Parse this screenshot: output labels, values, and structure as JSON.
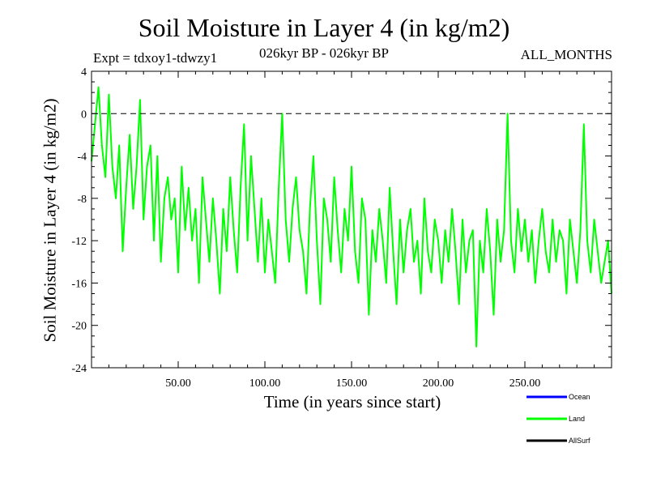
{
  "chart_data": {
    "type": "line",
    "title": "Soil Moisture in Layer 4 (in kg/m2)",
    "subtitle_left": "Expt = tdxoy1-tdwzy1",
    "subtitle_center": "026kyr BP - 026kyr BP",
    "subtitle_right": "ALL_MONTHS",
    "xlabel": "Time (in years since start)",
    "ylabel": "Soil Moisture in Layer 4 (in kg/m2)",
    "xlim": [
      0,
      300
    ],
    "ylim": [
      -24,
      4
    ],
    "xticks": [
      50,
      100,
      150,
      200,
      250
    ],
    "xtick_labels": [
      "50.00",
      "100.00",
      "150.00",
      "200.00",
      "250.00"
    ],
    "yticks": [
      4,
      0,
      -4,
      -8,
      -12,
      -16,
      -20,
      -24
    ],
    "ytick_labels": [
      "4",
      "0",
      "-4",
      "-8",
      "-12",
      "-16",
      "-20",
      "-24"
    ],
    "reference_line": 0,
    "legend": [
      {
        "name": "Ocean",
        "color": "#0000ff"
      },
      {
        "name": "Land",
        "color": "#00ff00"
      },
      {
        "name": "AllSurf",
        "color": "#000000"
      }
    ],
    "series": [
      {
        "name": "Land",
        "color": "#00ff00",
        "x_start": 0,
        "x_step": 2,
        "values": [
          -4.5,
          -1,
          2.5,
          -3,
          -6,
          1.8,
          -5,
          -8,
          -3,
          -13,
          -7,
          -2,
          -9,
          -5,
          1.3,
          -10,
          -5,
          -3,
          -12,
          -4,
          -14,
          -8,
          -6,
          -10,
          -8,
          -15,
          -5,
          -11,
          -7,
          -12,
          -9,
          -16,
          -6,
          -10,
          -14,
          -8,
          -12,
          -17,
          -9,
          -13,
          -6,
          -11,
          -15,
          -7,
          -1,
          -12,
          -4,
          -9,
          -14,
          -8,
          -15,
          -10,
          -13,
          -16,
          -7,
          0,
          -10,
          -14,
          -9,
          -6,
          -11,
          -13,
          -17,
          -9,
          -4,
          -12,
          -18,
          -8,
          -10,
          -14,
          -6,
          -11,
          -15,
          -9,
          -12,
          -5,
          -13,
          -16,
          -8,
          -10,
          -19,
          -11,
          -14,
          -9,
          -12,
          -16,
          -7,
          -13,
          -18,
          -10,
          -15,
          -11,
          -9,
          -14,
          -12,
          -17,
          -8,
          -13,
          -15,
          -10,
          -12,
          -16,
          -11,
          -14,
          -9,
          -13,
          -18,
          -10,
          -15,
          -12,
          -11,
          -22,
          -12,
          -15,
          -9,
          -13,
          -19,
          -10,
          -14,
          -11,
          0,
          -12,
          -15,
          -9,
          -13,
          -10,
          -14,
          -11,
          -16,
          -12,
          -9,
          -13,
          -15,
          -10,
          -14,
          -11,
          -12,
          -17,
          -10,
          -13,
          -16,
          -11,
          -1,
          -12,
          -15,
          -10,
          -13,
          -16,
          -14,
          -12,
          -17
        ]
      }
    ]
  }
}
